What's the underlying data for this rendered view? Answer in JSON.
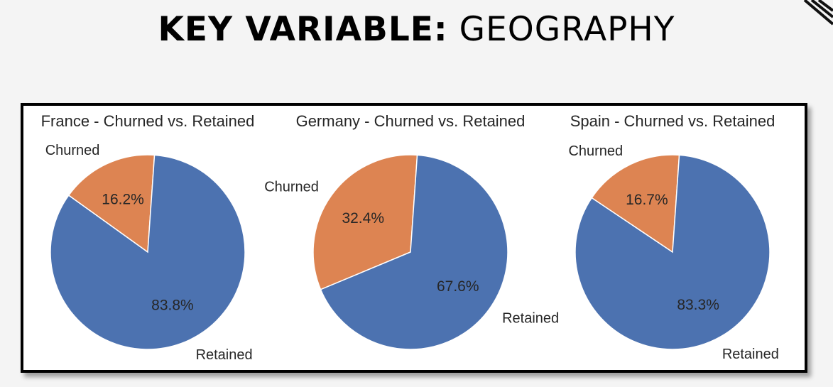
{
  "header": {
    "title_bold": "KEY VARIABLE:",
    "title_light": "GEOGRAPHY"
  },
  "colors": {
    "churned": "#dd8452",
    "retained": "#4c72b0"
  },
  "chart_data": [
    {
      "type": "pie",
      "title": "France - Churned vs. Retained",
      "labels": [
        "Churned",
        "Retained"
      ],
      "values": [
        16.2,
        83.8
      ],
      "value_labels": [
        "16.2%",
        "83.8%"
      ]
    },
    {
      "type": "pie",
      "title": "Germany - Churned vs. Retained",
      "labels": [
        "Churned",
        "Retained"
      ],
      "values": [
        32.4,
        67.6
      ],
      "value_labels": [
        "32.4%",
        "67.6%"
      ]
    },
    {
      "type": "pie",
      "title": "Spain - Churned vs. Retained",
      "labels": [
        "Churned",
        "Retained"
      ],
      "values": [
        16.7,
        83.3
      ],
      "value_labels": [
        "16.7%",
        "83.3%"
      ]
    }
  ]
}
